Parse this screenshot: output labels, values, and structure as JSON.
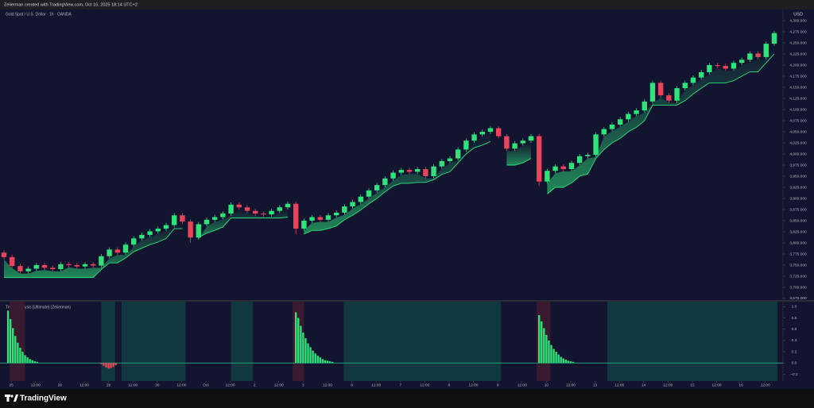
{
  "header": "Zeiierman created with TradingView.com, Oct 16, 2025 18:14 UTC+2",
  "footer": "TradingView",
  "chart_data": [
    {
      "type": "candlestick",
      "title": "Gold Spot / U.S. Dollar · 1h · OANDA",
      "currency": "USD",
      "up_color": "#2de37a",
      "down_color": "#e8455a",
      "trail_color": "#2de37a",
      "xlim": [
        -0.49,
        96.08
      ],
      "ylim": [
        3671.4,
        4325
      ],
      "yticks": [
        {
          "value": 4300,
          "label": "4,300.000"
        },
        {
          "value": 4275,
          "label": "4,275.000"
        },
        {
          "value": 4250,
          "label": "4,250.000"
        },
        {
          "value": 4225,
          "label": "4,225.000"
        },
        {
          "value": 4200,
          "label": "4,200.000"
        },
        {
          "value": 4175,
          "label": "4,175.000"
        },
        {
          "value": 4150,
          "label": "4,150.000"
        },
        {
          "value": 4125,
          "label": "4,125.000"
        },
        {
          "value": 4100,
          "label": "4,100.000"
        },
        {
          "value": 4075,
          "label": "4,075.000"
        },
        {
          "value": 4050,
          "label": "4,050.000"
        },
        {
          "value": 4025,
          "label": "4,025.000"
        },
        {
          "value": 4000,
          "label": "4,000.000"
        },
        {
          "value": 3975,
          "label": "3,975.000"
        },
        {
          "value": 3950,
          "label": "3,950.000"
        },
        {
          "value": 3925,
          "label": "3,925.000"
        },
        {
          "value": 3900,
          "label": "3,900.000"
        },
        {
          "value": 3875,
          "label": "3,875.000"
        },
        {
          "value": 3850,
          "label": "3,850.000"
        },
        {
          "value": 3825,
          "label": "3,825.000"
        },
        {
          "value": 3800,
          "label": "3,800.000"
        },
        {
          "value": 3775,
          "label": "3,775.000"
        },
        {
          "value": 3750,
          "label": "3,750.000"
        },
        {
          "value": 3725,
          "label": "3,725.000"
        },
        {
          "value": 3700,
          "label": "3,700.000"
        },
        {
          "value": 3675,
          "label": "3,675.000"
        }
      ],
      "open": [
        3778,
        3768,
        3748,
        3736,
        3742,
        3750,
        3744,
        3741,
        3752,
        3750,
        3747,
        3752,
        3749,
        3770,
        3785,
        3778,
        3796,
        3810,
        3818,
        3826,
        3832,
        3840,
        3862,
        3848,
        3812,
        3842,
        3852,
        3858,
        3866,
        3886,
        3880,
        3872,
        3866,
        3864,
        3872,
        3880,
        3888,
        3832,
        3850,
        3858,
        3852,
        3862,
        3868,
        3882,
        3892,
        3904,
        3918,
        3930,
        3945,
        3958,
        3964,
        3960,
        3966,
        3950,
        3972,
        3984,
        3990,
        4010,
        4030,
        4044,
        4050,
        4058,
        4040,
        4012,
        4024,
        4030,
        4040,
        3938,
        3962,
        3972,
        3966,
        3980,
        3995,
        3998,
        4044,
        4056,
        4066,
        4078,
        4090,
        4098,
        4118,
        4160,
        4132,
        4120,
        4148,
        4160,
        4172,
        4184,
        4200,
        4198,
        4192,
        4205,
        4212,
        4226,
        4218,
        4248
      ],
      "high": [
        3783,
        3773,
        3753,
        3747,
        3755,
        3755,
        3749,
        3757,
        3757,
        3755,
        3757,
        3757,
        3775,
        3790,
        3790,
        3801,
        3815,
        3823,
        3831,
        3837,
        3845,
        3867,
        3867,
        3853,
        3847,
        3857,
        3863,
        3871,
        3891,
        3891,
        3885,
        3877,
        3871,
        3877,
        3885,
        3893,
        3893,
        3855,
        3863,
        3863,
        3867,
        3873,
        3887,
        3897,
        3909,
        3923,
        3935,
        3950,
        3963,
        3969,
        3969,
        3971,
        3971,
        3977,
        3989,
        3995,
        4015,
        4035,
        4049,
        4055,
        4063,
        4063,
        4045,
        4029,
        4035,
        4045,
        4045,
        3967,
        3977,
        3977,
        3985,
        4000,
        4003,
        4049,
        4061,
        4071,
        4083,
        4095,
        4103,
        4123,
        4165,
        4165,
        4137,
        4153,
        4165,
        4177,
        4189,
        4205,
        4205,
        4203,
        4210,
        4217,
        4231,
        4231,
        4253,
        4277
      ],
      "low": [
        3763,
        3743,
        3731,
        3731,
        3737,
        3739,
        3736,
        3736,
        3745,
        3742,
        3742,
        3744,
        3744,
        3765,
        3773,
        3773,
        3791,
        3805,
        3813,
        3821,
        3827,
        3835,
        3843,
        3800,
        3807,
        3837,
        3847,
        3853,
        3861,
        3875,
        3867,
        3861,
        3859,
        3859,
        3867,
        3875,
        3820,
        3827,
        3845,
        3847,
        3847,
        3857,
        3863,
        3877,
        3887,
        3899,
        3913,
        3925,
        3940,
        3953,
        3955,
        3955,
        3945,
        3945,
        3967,
        3979,
        3985,
        4005,
        4025,
        4039,
        4045,
        4035,
        4007,
        4007,
        4019,
        4025,
        3928,
        3933,
        3957,
        3961,
        3961,
        3975,
        3990,
        3993,
        4039,
        4051,
        4061,
        4073,
        4085,
        4093,
        4113,
        4127,
        4115,
        4115,
        4143,
        4155,
        4167,
        4179,
        4193,
        4187,
        4187,
        4200,
        4207,
        4213,
        4213,
        4243
      ],
      "close": [
        3768,
        3748,
        3736,
        3742,
        3750,
        3744,
        3741,
        3752,
        3750,
        3747,
        3752,
        3749,
        3770,
        3785,
        3778,
        3796,
        3810,
        3818,
        3826,
        3832,
        3840,
        3862,
        3848,
        3812,
        3842,
        3852,
        3858,
        3866,
        3886,
        3880,
        3872,
        3866,
        3864,
        3872,
        3880,
        3888,
        3832,
        3850,
        3858,
        3852,
        3862,
        3868,
        3882,
        3892,
        3904,
        3918,
        3930,
        3945,
        3958,
        3964,
        3960,
        3966,
        3950,
        3972,
        3984,
        3990,
        4010,
        4030,
        4044,
        4050,
        4058,
        4040,
        4012,
        4024,
        4030,
        4040,
        3938,
        3962,
        3972,
        3966,
        3980,
        3995,
        3998,
        4044,
        4056,
        4066,
        4078,
        4090,
        4098,
        4118,
        4160,
        4132,
        4120,
        4148,
        4160,
        4172,
        4184,
        4200,
        4198,
        4192,
        4205,
        4212,
        4226,
        4218,
        4248,
        4272
      ],
      "trail": [
        3722,
        3722,
        3722,
        3722,
        3722,
        3722,
        3722,
        3722,
        3722,
        3722,
        3722,
        3722,
        3740,
        3755,
        3755,
        3766,
        3780,
        3788,
        3796,
        3802,
        3810,
        3832,
        3832,
        null,
        3812,
        3822,
        3828,
        3836,
        3856,
        3856,
        3856,
        3856,
        3856,
        3856,
        3856,
        3858,
        null,
        3820,
        3828,
        3828,
        3832,
        3838,
        3852,
        3862,
        3874,
        3888,
        3900,
        3915,
        3928,
        3934,
        3934,
        3936,
        3936,
        3942,
        3954,
        3960,
        3980,
        4000,
        4014,
        4020,
        4028,
        null,
        3975,
        3975,
        3980,
        3990,
        null,
        3910,
        3925,
        3925,
        3935,
        3950,
        3955,
        3990,
        4010,
        4025,
        4035,
        4050,
        4060,
        4075,
        4110,
        4110,
        4110,
        4110,
        4120,
        4135,
        4148,
        4160,
        4160,
        4160,
        4165,
        4175,
        4185,
        4185,
        4205,
        4225
      ]
    },
    {
      "type": "histogram",
      "title": "Trend Analysis [Ultimate] (Zeiierman)",
      "pos_color": "#2de37a",
      "neg_color": "#e8455a",
      "zero_color": "#1fae86",
      "xlim": [
        -0.49,
        96.08
      ],
      "ylim": [
        -0.32,
        1.09
      ],
      "yticks": [
        {
          "value": 1,
          "label": "1.0"
        },
        0.8,
        0.6,
        0.4,
        0.2,
        {
          "value": 0,
          "label": "0.0"
        },
        {
          "value": -0.2,
          "label": "−0.2"
        }
      ],
      "zones": [
        {
          "from": 0.7,
          "to": 2.6,
          "color": "#3a1a30"
        },
        {
          "from": 12,
          "to": 13.7,
          "color": "#12383f"
        },
        {
          "from": 14.5,
          "to": 22.4,
          "color": "#12383f"
        },
        {
          "from": 28,
          "to": 30.7,
          "color": "#12383f"
        },
        {
          "from": 35.6,
          "to": 37,
          "color": "#3a1a30"
        },
        {
          "from": 41.9,
          "to": 61.3,
          "color": "#12383f"
        },
        {
          "from": 65.7,
          "to": 67.4,
          "color": "#3a1a30"
        },
        {
          "from": 74.4,
          "to": 95.4,
          "color": "#12383f"
        }
      ],
      "x": [
        0.5,
        0.8,
        1.1,
        1.4,
        1.7,
        2.0,
        2.3,
        2.6,
        2.9,
        3.2,
        3.5,
        3.8,
        4.1,
        12.0,
        12.3,
        12.6,
        12.9,
        13.2,
        13.5,
        13.8,
        36.0,
        36.3,
        36.6,
        36.9,
        37.2,
        37.5,
        37.8,
        38.1,
        38.4,
        38.7,
        39.0,
        39.3,
        39.6,
        39.9,
        40.2,
        40.5,
        66.0,
        66.3,
        66.6,
        66.9,
        67.2,
        67.5,
        67.8,
        68.1,
        68.4,
        68.7,
        69.0,
        69.3,
        69.6,
        69.9,
        70.2
      ],
      "values": [
        0.93,
        0.78,
        0.62,
        0.48,
        0.36,
        0.27,
        0.2,
        0.14,
        0.1,
        0.07,
        0.05,
        0.03,
        0.02,
        -0.02,
        -0.05,
        -0.08,
        -0.1,
        -0.09,
        -0.07,
        -0.04,
        0.9,
        0.8,
        0.66,
        0.54,
        0.44,
        0.35,
        0.28,
        0.22,
        0.17,
        0.13,
        0.1,
        0.07,
        0.05,
        0.04,
        0.03,
        0.02,
        0.85,
        0.74,
        0.62,
        0.5,
        0.4,
        0.32,
        0.25,
        0.2,
        0.15,
        0.11,
        0.08,
        0.06,
        0.04,
        0.03,
        0.02
      ],
      "xticks": [
        {
          "value": 0.9,
          "label": "25"
        },
        {
          "value": 3.9,
          "label": "12:00"
        },
        {
          "value": 6.9,
          "label": "26"
        },
        {
          "value": 9.9,
          "label": "12:00"
        },
        {
          "value": 12.9,
          "label": "29"
        },
        {
          "value": 15.9,
          "label": "12:00"
        },
        {
          "value": 18.9,
          "label": "30"
        },
        {
          "value": 21.9,
          "label": "12:00"
        },
        {
          "value": 24.9,
          "label": "Oct"
        },
        {
          "value": 27.9,
          "label": "12:00"
        },
        {
          "value": 30.9,
          "label": "2"
        },
        {
          "value": 33.9,
          "label": "12:00"
        },
        {
          "value": 36.9,
          "label": "3"
        },
        {
          "value": 39.9,
          "label": "12:00"
        },
        {
          "value": 42.9,
          "label": "6"
        },
        {
          "value": 45.9,
          "label": "12:00"
        },
        {
          "value": 48.9,
          "label": "7"
        },
        {
          "value": 51.9,
          "label": "12:00"
        },
        {
          "value": 54.9,
          "label": "8"
        },
        {
          "value": 57.9,
          "label": "12:00"
        },
        {
          "value": 60.9,
          "label": "9"
        },
        {
          "value": 63.9,
          "label": "12:00"
        },
        {
          "value": 66.9,
          "label": "10"
        },
        {
          "value": 69.9,
          "label": "12:00"
        },
        {
          "value": 72.9,
          "label": "13"
        },
        {
          "value": 75.9,
          "label": "12:00"
        },
        {
          "value": 78.9,
          "label": "14"
        },
        {
          "value": 81.9,
          "label": "12:00"
        },
        {
          "value": 84.9,
          "label": "15"
        },
        {
          "value": 87.9,
          "label": "12:00"
        },
        {
          "value": 90.9,
          "label": "16"
        },
        {
          "value": 93.9,
          "label": "12:00"
        }
      ]
    }
  ]
}
